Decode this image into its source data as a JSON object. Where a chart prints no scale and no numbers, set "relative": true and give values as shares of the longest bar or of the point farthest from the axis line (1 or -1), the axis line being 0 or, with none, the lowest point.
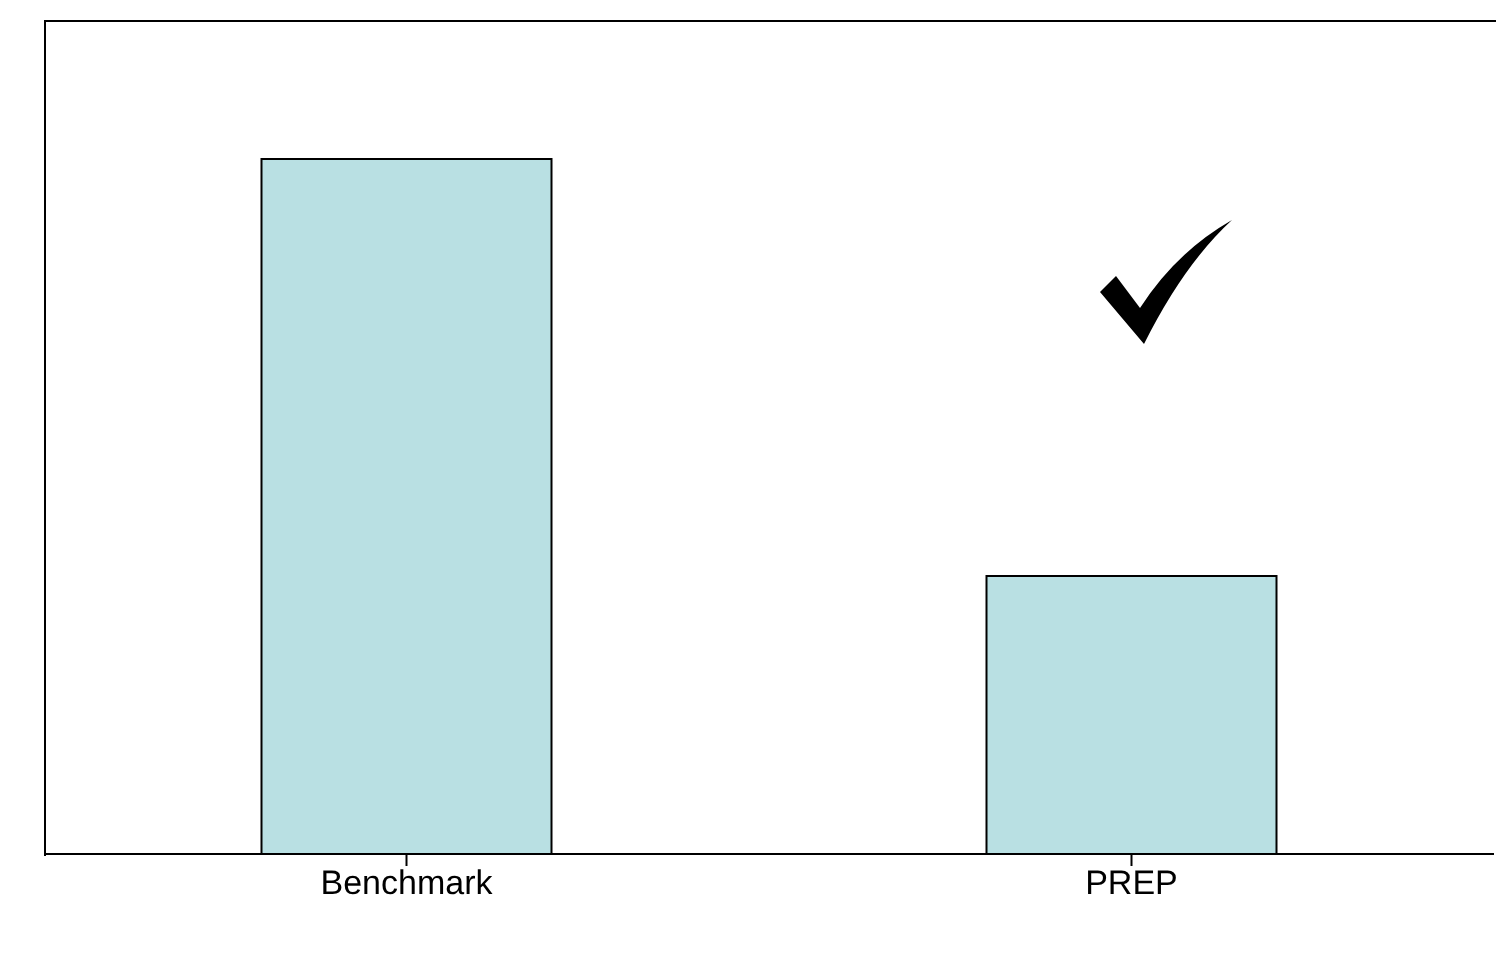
{
  "chart_data": {
    "type": "bar",
    "relative": true,
    "categories": [
      "Benchmark",
      "PREP"
    ],
    "values": [
      1,
      0.4
    ],
    "color": "#b9e0e3",
    "grid": false
  }
}
